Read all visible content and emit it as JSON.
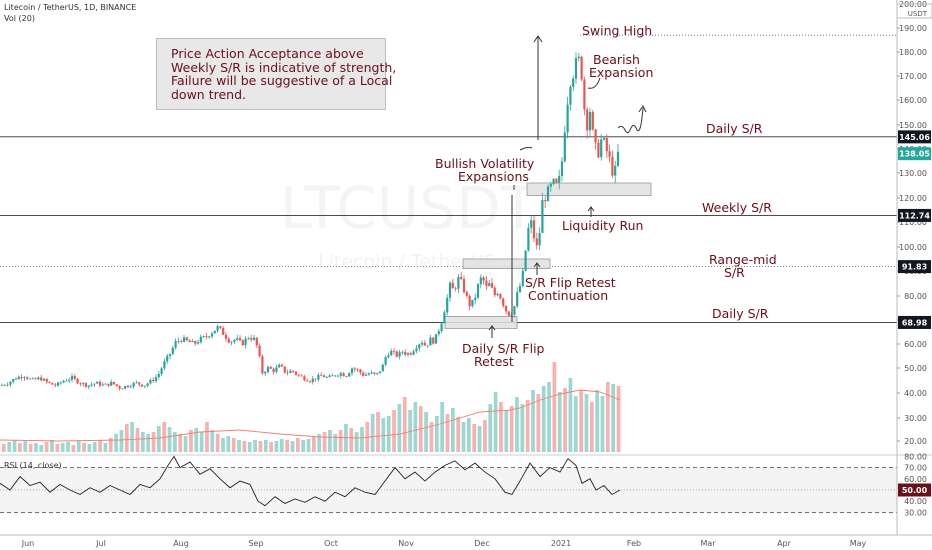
{
  "header": {
    "title": "Litecoin / TetherUS, 1D, BINANCE",
    "volume_label": "Vol (20)",
    "rsi_label": "RSI (14, close)"
  },
  "note_lines": [
    "Price Action Acceptance above",
    "Weekly S/R is indicative of strength,",
    "Failure will be suggestive of a Local",
    "down trend."
  ],
  "watermark": {
    "main": "LTCUSDT",
    "sub": "Litecoin / TetherUS"
  },
  "colors": {
    "up": "#26a69a",
    "down": "#ef5350",
    "text": "#6b0f1a",
    "rsi": "#222222",
    "vol_ma": "#f08070"
  },
  "chart_data": {
    "type": "candlestick",
    "price_axis": {
      "ticks": [
        20,
        30,
        40,
        50,
        60,
        70,
        80,
        90,
        100,
        110,
        120,
        130,
        140,
        150,
        160,
        170,
        180,
        190,
        200
      ],
      "range": [
        15,
        201
      ],
      "currency_label": "USDT"
    },
    "x_axis": {
      "labels": [
        "Jun",
        "Jul",
        "Aug",
        "Sep",
        "Oct",
        "Nov",
        "Dec",
        "2021",
        "Feb",
        "Mar",
        "Apr",
        "May"
      ]
    },
    "price_levels": [
      {
        "value": 145.06,
        "label": "145.06",
        "style": "solid",
        "badge": "dark"
      },
      {
        "value": 138.05,
        "label": "138.05",
        "style": "none",
        "badge": "teal"
      },
      {
        "value": 112.74,
        "label": "112.74",
        "style": "solid",
        "badge": "dark"
      },
      {
        "value": 91.83,
        "label": "91.83",
        "style": "dotted",
        "badge": "dark"
      },
      {
        "value": 68.98,
        "label": "68.98",
        "style": "solid",
        "badge": "dark"
      }
    ],
    "swing_high_value": 187,
    "zones": [
      {
        "from": 66.5,
        "to": 71.5
      },
      {
        "from": 91.0,
        "to": 95.0
      },
      {
        "from": 121.0,
        "to": 126.0
      }
    ],
    "annotations": [
      "Swing High",
      "Bearish",
      "Expansion",
      "Daily S/R",
      "Bullish Volatility",
      "Expansions",
      "Weekly S/R",
      "Liquidity Run",
      "Range-mid",
      "S/R",
      "S/R Flip Retest",
      "Continuation",
      "Daily S/R",
      "Daily S/R Flip",
      "Retest"
    ],
    "price_path": [
      [
        0,
        43
      ],
      [
        8,
        44
      ],
      [
        16,
        46
      ],
      [
        24,
        47
      ],
      [
        32,
        45
      ],
      [
        40,
        46
      ],
      [
        48,
        44
      ],
      [
        56,
        43
      ],
      [
        64,
        45
      ],
      [
        72,
        46
      ],
      [
        80,
        44
      ],
      [
        88,
        43
      ],
      [
        96,
        44
      ],
      [
        104,
        43
      ],
      [
        112,
        44
      ],
      [
        120,
        42
      ],
      [
        128,
        43
      ],
      [
        136,
        44
      ],
      [
        144,
        43
      ],
      [
        152,
        45
      ],
      [
        158,
        47
      ],
      [
        164,
        52
      ],
      [
        170,
        56
      ],
      [
        176,
        61
      ],
      [
        182,
        62
      ],
      [
        188,
        61
      ],
      [
        194,
        60
      ],
      [
        200,
        62
      ],
      [
        206,
        63
      ],
      [
        212,
        65
      ],
      [
        218,
        67
      ],
      [
        224,
        64
      ],
      [
        230,
        61
      ],
      [
        236,
        62
      ],
      [
        242,
        60
      ],
      [
        248,
        63
      ],
      [
        254,
        62
      ],
      [
        258,
        58
      ],
      [
        262,
        48
      ],
      [
        268,
        50
      ],
      [
        274,
        49
      ],
      [
        280,
        51
      ],
      [
        286,
        48
      ],
      [
        292,
        49
      ],
      [
        298,
        47
      ],
      [
        304,
        46
      ],
      [
        310,
        45
      ],
      [
        316,
        46
      ],
      [
        322,
        47
      ],
      [
        328,
        46
      ],
      [
        334,
        47
      ],
      [
        340,
        48
      ],
      [
        346,
        47
      ],
      [
        352,
        50
      ],
      [
        358,
        49
      ],
      [
        364,
        47
      ],
      [
        370,
        48
      ],
      [
        376,
        47
      ],
      [
        382,
        50
      ],
      [
        386,
        55
      ],
      [
        390,
        57
      ],
      [
        394,
        56
      ],
      [
        398,
        55
      ],
      [
        402,
        57
      ],
      [
        406,
        56
      ],
      [
        410,
        56
      ],
      [
        414,
        58
      ],
      [
        418,
        60
      ],
      [
        422,
        61
      ],
      [
        426,
        59
      ],
      [
        430,
        62
      ],
      [
        434,
        61
      ],
      [
        438,
        65
      ],
      [
        442,
        70
      ],
      [
        446,
        77
      ],
      [
        450,
        84
      ],
      [
        454,
        82
      ],
      [
        458,
        87
      ],
      [
        462,
        85
      ],
      [
        466,
        80
      ],
      [
        470,
        76
      ],
      [
        474,
        78
      ],
      [
        478,
        84
      ],
      [
        482,
        88
      ],
      [
        486,
        83
      ],
      [
        490,
        85
      ],
      [
        494,
        80
      ],
      [
        498,
        82
      ],
      [
        502,
        78
      ],
      [
        506,
        74
      ],
      [
        510,
        72
      ],
      [
        514,
        75
      ],
      [
        518,
        82
      ],
      [
        522,
        86
      ],
      [
        526,
        100
      ],
      [
        530,
        112
      ],
      [
        534,
        104
      ],
      [
        538,
        98
      ],
      [
        542,
        118
      ],
      [
        546,
        121
      ],
      [
        550,
        124
      ],
      [
        554,
        126
      ],
      [
        558,
        124
      ],
      [
        562,
        135
      ],
      [
        566,
        155
      ],
      [
        570,
        168
      ],
      [
        574,
        172
      ],
      [
        578,
        178
      ],
      [
        582,
        170
      ],
      [
        586,
        148
      ],
      [
        590,
        156
      ],
      [
        594,
        142
      ],
      [
        598,
        138
      ],
      [
        602,
        145
      ],
      [
        606,
        140
      ],
      [
        610,
        135
      ],
      [
        614,
        128
      ],
      [
        618,
        138
      ],
      [
        620,
        142
      ]
    ],
    "volume_heights": [
      8,
      10,
      12,
      9,
      11,
      8,
      9,
      7,
      10,
      12,
      8,
      9,
      10,
      7,
      11,
      9,
      8,
      10,
      12,
      9,
      14,
      18,
      22,
      28,
      30,
      24,
      20,
      18,
      20,
      26,
      30,
      25,
      20,
      18,
      16,
      22,
      24,
      20,
      30,
      22,
      18,
      14,
      16,
      14,
      12,
      11,
      10,
      12,
      11,
      12,
      10,
      11,
      13,
      12,
      11,
      14,
      12,
      13,
      15,
      18,
      20,
      22,
      18,
      22,
      28,
      24,
      20,
      25,
      30,
      38,
      40,
      34,
      36,
      42,
      48,
      55,
      42,
      50,
      46,
      40,
      30,
      36,
      50,
      38,
      44,
      35,
      30,
      34,
      28,
      26,
      32,
      48,
      60,
      50,
      42,
      46,
      55,
      48,
      52,
      62,
      58,
      66,
      70,
      90,
      60,
      64,
      74,
      56,
      62,
      58,
      50,
      62,
      56,
      70,
      68,
      66
    ],
    "volume_ma_path": [
      [
        0,
        12
      ],
      [
        60,
        11
      ],
      [
        120,
        12
      ],
      [
        160,
        14
      ],
      [
        200,
        20
      ],
      [
        240,
        22
      ],
      [
        280,
        18
      ],
      [
        320,
        15
      ],
      [
        360,
        14
      ],
      [
        400,
        18
      ],
      [
        440,
        28
      ],
      [
        480,
        40
      ],
      [
        510,
        42
      ],
      [
        520,
        44
      ],
      [
        540,
        52
      ],
      [
        560,
        58
      ],
      [
        580,
        62
      ],
      [
        600,
        60
      ],
      [
        620,
        52
      ]
    ],
    "rsi": {
      "ticks": [
        30.0,
        40.0,
        50.0,
        60.0,
        70.0,
        80.0
      ],
      "levels": [
        30,
        70
      ],
      "current": 50.0,
      "current_label": "50.00",
      "path": [
        [
          0,
          56
        ],
        [
          10,
          50
        ],
        [
          20,
          62
        ],
        [
          30,
          54
        ],
        [
          40,
          57
        ],
        [
          50,
          48
        ],
        [
          60,
          55
        ],
        [
          70,
          50
        ],
        [
          80,
          46
        ],
        [
          90,
          52
        ],
        [
          100,
          48
        ],
        [
          110,
          54
        ],
        [
          120,
          50
        ],
        [
          130,
          46
        ],
        [
          140,
          55
        ],
        [
          150,
          52
        ],
        [
          160,
          60
        ],
        [
          168,
          72
        ],
        [
          174,
          80
        ],
        [
          180,
          70
        ],
        [
          190,
          75
        ],
        [
          200,
          64
        ],
        [
          210,
          69
        ],
        [
          220,
          60
        ],
        [
          230,
          52
        ],
        [
          240,
          58
        ],
        [
          250,
          55
        ],
        [
          258,
          40
        ],
        [
          265,
          36
        ],
        [
          275,
          44
        ],
        [
          285,
          38
        ],
        [
          295,
          42
        ],
        [
          305,
          39
        ],
        [
          315,
          44
        ],
        [
          325,
          40
        ],
        [
          335,
          48
        ],
        [
          345,
          44
        ],
        [
          355,
          52
        ],
        [
          365,
          48
        ],
        [
          375,
          46
        ],
        [
          385,
          58
        ],
        [
          395,
          70
        ],
        [
          405,
          60
        ],
        [
          415,
          66
        ],
        [
          425,
          58
        ],
        [
          435,
          66
        ],
        [
          445,
          72
        ],
        [
          455,
          76
        ],
        [
          465,
          68
        ],
        [
          475,
          74
        ],
        [
          485,
          66
        ],
        [
          495,
          60
        ],
        [
          505,
          48
        ],
        [
          512,
          46
        ],
        [
          520,
          58
        ],
        [
          530,
          74
        ],
        [
          540,
          62
        ],
        [
          550,
          70
        ],
        [
          560,
          66
        ],
        [
          568,
          78
        ],
        [
          576,
          72
        ],
        [
          582,
          56
        ],
        [
          590,
          60
        ],
        [
          596,
          50
        ],
        [
          604,
          54
        ],
        [
          612,
          46
        ],
        [
          620,
          50
        ]
      ]
    }
  }
}
